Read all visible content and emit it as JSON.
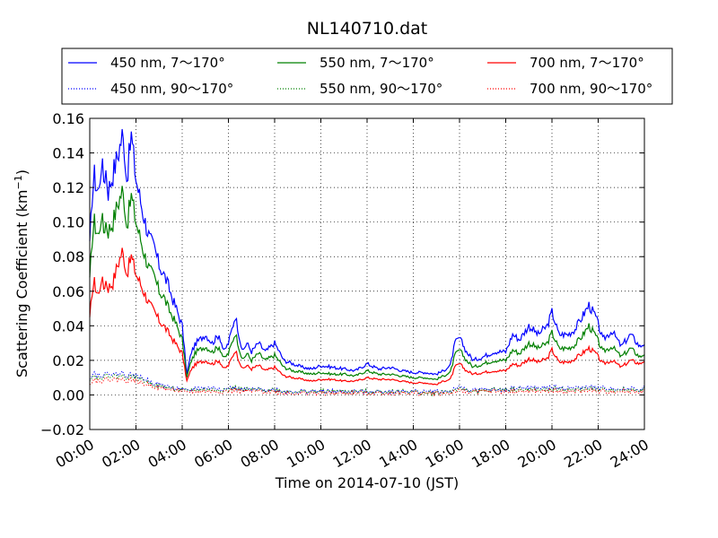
{
  "chart_data": {
    "type": "line",
    "title": "NL140710.dat",
    "xlabel": "Time on 2014-07-10 (JST)",
    "ylabel": "Scattering Coefficient (km",
    "ylabel_sup": "−1",
    "ylabel_close": ")",
    "xlim": [
      "00:00",
      "24:00"
    ],
    "ylim": [
      -0.02,
      0.16
    ],
    "x_ticks": [
      "00:00",
      "02:00",
      "04:00",
      "06:00",
      "08:00",
      "10:00",
      "12:00",
      "14:00",
      "16:00",
      "18:00",
      "20:00",
      "22:00",
      "24:00"
    ],
    "y_ticks": [
      "−0.02",
      "0.00",
      "0.02",
      "0.04",
      "0.06",
      "0.08",
      "0.10",
      "0.12",
      "0.14",
      "0.16"
    ],
    "grid": true,
    "legend_position": "top",
    "x_hours_key": [
      0,
      0.1,
      0.2,
      0.3,
      0.4,
      0.5,
      0.6,
      0.7,
      0.8,
      1.0,
      1.2,
      1.4,
      1.5,
      1.6,
      1.8,
      2.0,
      2.2,
      2.4,
      2.6,
      2.8,
      3.0,
      3.2,
      3.4,
      3.6,
      3.8,
      4.0,
      4.2,
      4.4,
      4.6,
      5.0,
      5.3,
      5.6,
      5.8,
      6.0,
      6.3,
      6.6,
      6.8,
      7.0,
      7.3,
      7.6,
      8.0,
      8.4,
      8.8,
      9.2,
      9.6,
      10.0,
      10.5,
      11.0,
      11.5,
      12.0,
      12.5,
      13.0,
      13.5,
      14.0,
      14.5,
      15.0,
      15.3,
      15.6,
      15.8,
      16.0,
      16.3,
      16.6,
      17.0,
      17.5,
      18.0,
      18.3,
      18.6,
      19.0,
      19.4,
      19.8,
      20.0,
      20.3,
      20.7,
      21.0,
      21.3,
      21.6,
      21.9,
      22.2,
      22.6,
      23.0,
      23.4,
      23.8,
      24.0
    ],
    "series": [
      {
        "name": "450 nm, 7～170°",
        "color": "#0000ff",
        "style": "solid",
        "values": [
          0.085,
          0.115,
          0.127,
          0.12,
          0.118,
          0.135,
          0.125,
          0.13,
          0.118,
          0.128,
          0.138,
          0.15,
          0.143,
          0.125,
          0.15,
          0.125,
          0.112,
          0.1,
          0.09,
          0.085,
          0.075,
          0.07,
          0.063,
          0.055,
          0.048,
          0.04,
          0.012,
          0.025,
          0.03,
          0.035,
          0.03,
          0.035,
          0.025,
          0.03,
          0.046,
          0.025,
          0.03,
          0.025,
          0.03,
          0.025,
          0.03,
          0.02,
          0.018,
          0.016,
          0.015,
          0.017,
          0.016,
          0.015,
          0.014,
          0.018,
          0.015,
          0.016,
          0.014,
          0.013,
          0.013,
          0.012,
          0.014,
          0.017,
          0.03,
          0.033,
          0.025,
          0.02,
          0.022,
          0.025,
          0.025,
          0.035,
          0.032,
          0.04,
          0.035,
          0.04,
          0.048,
          0.035,
          0.035,
          0.038,
          0.045,
          0.052,
          0.045,
          0.032,
          0.037,
          0.028,
          0.035,
          0.028,
          0.03
        ]
      },
      {
        "name": "450 nm, 90～170°",
        "color": "#0000ff",
        "style": "dotted",
        "values": [
          0.01,
          0.012,
          0.013,
          0.011,
          0.012,
          0.011,
          0.012,
          0.012,
          0.013,
          0.012,
          0.012,
          0.013,
          0.012,
          0.011,
          0.012,
          0.011,
          0.01,
          0.009,
          0.008,
          0.007,
          0.006,
          0.005,
          0.005,
          0.004,
          0.004,
          0.003,
          0.002,
          0.003,
          0.004,
          0.004,
          0.004,
          0.004,
          0.003,
          0.004,
          0.004,
          0.003,
          0.003,
          0.003,
          0.003,
          0.003,
          0.003,
          0.002,
          0.002,
          0.002,
          0.002,
          0.002,
          0.002,
          0.002,
          0.002,
          0.002,
          0.002,
          0.002,
          0.002,
          0.002,
          0.002,
          0.002,
          0.002,
          0.002,
          0.004,
          0.004,
          0.003,
          0.003,
          0.003,
          0.003,
          0.003,
          0.004,
          0.004,
          0.004,
          0.004,
          0.004,
          0.005,
          0.004,
          0.004,
          0.004,
          0.004,
          0.005,
          0.004,
          0.004,
          0.004,
          0.003,
          0.004,
          0.003,
          0.004
        ]
      },
      {
        "name": "550 nm, 7～170°",
        "color": "#008000",
        "style": "solid",
        "values": [
          0.065,
          0.09,
          0.1,
          0.095,
          0.092,
          0.105,
          0.095,
          0.1,
          0.095,
          0.1,
          0.11,
          0.118,
          0.112,
          0.098,
          0.115,
          0.1,
          0.09,
          0.08,
          0.072,
          0.068,
          0.06,
          0.057,
          0.05,
          0.045,
          0.039,
          0.032,
          0.01,
          0.02,
          0.025,
          0.028,
          0.025,
          0.028,
          0.021,
          0.024,
          0.036,
          0.02,
          0.024,
          0.02,
          0.024,
          0.02,
          0.023,
          0.016,
          0.014,
          0.013,
          0.012,
          0.013,
          0.012,
          0.012,
          0.011,
          0.014,
          0.012,
          0.012,
          0.011,
          0.01,
          0.01,
          0.009,
          0.011,
          0.013,
          0.023,
          0.026,
          0.02,
          0.016,
          0.018,
          0.02,
          0.02,
          0.026,
          0.024,
          0.03,
          0.027,
          0.03,
          0.036,
          0.027,
          0.027,
          0.029,
          0.034,
          0.04,
          0.034,
          0.025,
          0.028,
          0.022,
          0.027,
          0.022,
          0.024
        ]
      },
      {
        "name": "550 nm, 90～170°",
        "color": "#008000",
        "style": "dotted",
        "values": [
          0.009,
          0.011,
          0.011,
          0.01,
          0.01,
          0.01,
          0.011,
          0.011,
          0.011,
          0.011,
          0.011,
          0.011,
          0.011,
          0.01,
          0.011,
          0.01,
          0.009,
          0.008,
          0.007,
          0.006,
          0.005,
          0.005,
          0.004,
          0.004,
          0.003,
          0.003,
          0.002,
          0.003,
          0.003,
          0.003,
          0.003,
          0.003,
          0.003,
          0.003,
          0.004,
          0.003,
          0.003,
          0.003,
          0.003,
          0.003,
          0.003,
          0.002,
          0.002,
          0.002,
          0.002,
          0.002,
          0.002,
          0.002,
          0.002,
          0.002,
          0.002,
          0.002,
          0.002,
          0.002,
          0.001,
          0.001,
          0.002,
          0.002,
          0.003,
          0.003,
          0.003,
          0.002,
          0.002,
          0.003,
          0.003,
          0.003,
          0.003,
          0.003,
          0.003,
          0.003,
          0.004,
          0.003,
          0.003,
          0.003,
          0.003,
          0.004,
          0.003,
          0.003,
          0.003,
          0.003,
          0.003,
          0.003,
          0.003
        ]
      },
      {
        "name": "700 nm, 7～170°",
        "color": "#ff0000",
        "style": "solid",
        "values": [
          0.043,
          0.06,
          0.065,
          0.06,
          0.058,
          0.068,
          0.062,
          0.066,
          0.062,
          0.065,
          0.075,
          0.083,
          0.078,
          0.07,
          0.08,
          0.07,
          0.064,
          0.058,
          0.052,
          0.048,
          0.043,
          0.04,
          0.036,
          0.032,
          0.028,
          0.024,
          0.008,
          0.015,
          0.018,
          0.02,
          0.018,
          0.02,
          0.015,
          0.017,
          0.026,
          0.015,
          0.017,
          0.015,
          0.017,
          0.014,
          0.016,
          0.011,
          0.01,
          0.009,
          0.008,
          0.009,
          0.009,
          0.008,
          0.008,
          0.01,
          0.009,
          0.009,
          0.008,
          0.007,
          0.007,
          0.006,
          0.008,
          0.009,
          0.016,
          0.018,
          0.014,
          0.012,
          0.013,
          0.014,
          0.014,
          0.018,
          0.017,
          0.021,
          0.019,
          0.021,
          0.026,
          0.019,
          0.019,
          0.021,
          0.024,
          0.027,
          0.024,
          0.018,
          0.02,
          0.016,
          0.02,
          0.018,
          0.02
        ]
      },
      {
        "name": "700 nm, 90～170°",
        "color": "#ff0000",
        "style": "dotted",
        "values": [
          0.007,
          0.008,
          0.009,
          0.008,
          0.008,
          0.008,
          0.009,
          0.009,
          0.009,
          0.009,
          0.009,
          0.009,
          0.009,
          0.008,
          0.009,
          0.008,
          0.007,
          0.006,
          0.006,
          0.005,
          0.004,
          0.004,
          0.003,
          0.003,
          0.003,
          0.002,
          0.001,
          0.002,
          0.002,
          0.002,
          0.002,
          0.002,
          0.002,
          0.002,
          0.003,
          0.002,
          0.002,
          0.002,
          0.002,
          0.002,
          0.002,
          0.001,
          0.001,
          0.001,
          0.001,
          0.001,
          0.001,
          0.001,
          0.001,
          0.001,
          0.001,
          0.001,
          0.001,
          0.001,
          0.001,
          0.001,
          0.001,
          0.001,
          0.002,
          0.002,
          0.002,
          0.002,
          0.002,
          0.002,
          0.002,
          0.002,
          0.002,
          0.002,
          0.002,
          0.002,
          0.003,
          0.002,
          0.002,
          0.002,
          0.002,
          0.003,
          0.002,
          0.002,
          0.002,
          0.002,
          0.002,
          0.002,
          0.002
        ]
      }
    ]
  }
}
